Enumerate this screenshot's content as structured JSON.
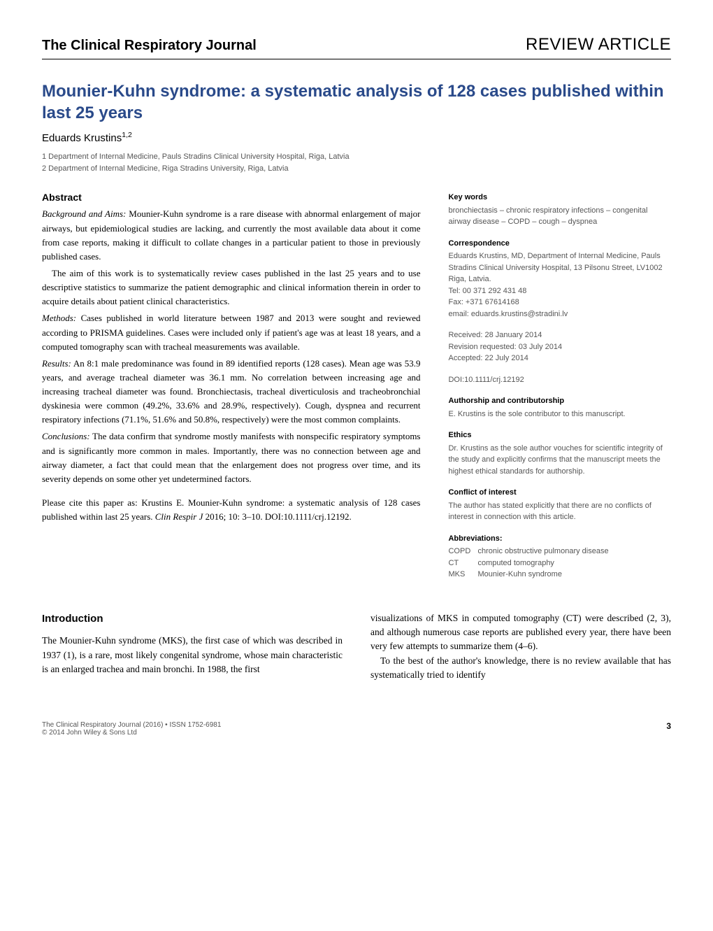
{
  "header": {
    "journal_name": "The Clinical Respiratory Journal",
    "article_type": "REVIEW ARTICLE"
  },
  "title": "Mounier-Kuhn syndrome: a systematic analysis of 128 cases published within last 25 years",
  "author_name": "Eduards Krustins",
  "author_sup": "1,2",
  "affiliations": {
    "a1": "1 Department of Internal Medicine, Pauls Stradins Clinical University Hospital, Riga, Latvia",
    "a2": "2 Department of Internal Medicine, Riga Stradins University, Riga, Latvia"
  },
  "abstract": {
    "heading": "Abstract",
    "background_label": "Background and Aims:",
    "background_text": "Mounier-Kuhn syndrome is a rare disease with abnormal enlargement of major airways, but epidemiological studies are lacking, and currently the most available data about it come from case reports, making it difficult to collate changes in a particular patient to those in previously published cases.",
    "aim_text": "The aim of this work is to systematically review cases published in the last 25 years and to use descriptive statistics to summarize the patient demographic and clinical information therein in order to acquire details about patient clinical characteristics.",
    "methods_label": "Methods:",
    "methods_text": "Cases published in world literature between 1987 and 2013 were sought and reviewed according to PRISMA guidelines. Cases were included only if patient's age was at least 18 years, and a computed tomography scan with tracheal measurements was available.",
    "results_label": "Results:",
    "results_text": "An 8:1 male predominance was found in 89 identified reports (128 cases). Mean age was 53.9 years, and average tracheal diameter was 36.1 mm. No correlation between increasing age and increasing tracheal diameter was found. Bronchiectasis, tracheal diverticulosis and tracheobronchial dyskinesia were common (49.2%, 33.6% and 28.9%, respectively). Cough, dyspnea and recurrent respiratory infections (71.1%, 51.6% and 50.8%, respectively) were the most common complaints.",
    "conclusions_label": "Conclusions:",
    "conclusions_text": "The data confirm that syndrome mostly manifests with nonspecific respiratory symptoms and is significantly more common in males. Importantly, there was no connection between age and airway diameter, a fact that could mean that the enlargement does not progress over time, and its severity depends on some other yet undetermined factors."
  },
  "citation": {
    "prefix": "Please cite this paper as: Krustins E. Mounier-Kuhn syndrome: a systematic analysis of 128 cases published within last 25 years. ",
    "journal_italic": "Clin Respir J",
    "suffix": " 2016; 10: 3–10. DOI:10.1111/crj.12192."
  },
  "sidebar": {
    "keywords_heading": "Key words",
    "keywords_text": "bronchiectasis – chronic respiratory infections – congenital airway disease – COPD – cough – dyspnea",
    "correspondence_heading": "Correspondence",
    "correspondence_text": "Eduards Krustins, MD, Department of Internal Medicine, Pauls Stradins Clinical University Hospital, 13 Pilsonu Street, LV1002 Riga, Latvia.",
    "tel": "Tel: 00 371 292 431 48",
    "fax": "Fax: +371 67614168",
    "email": "email: eduards.krustins@stradini.lv",
    "received": "Received: 28 January 2014",
    "revision": "Revision requested: 03 July 2014",
    "accepted": "Accepted: 22 July 2014",
    "doi": "DOI:10.1111/crj.12192",
    "authorship_heading": "Authorship and contributorship",
    "authorship_text": "E. Krustins is the sole contributor to this manuscript.",
    "ethics_heading": "Ethics",
    "ethics_text": "Dr. Krustins as the sole author vouches for scientific integrity of the study and explicitly confirms that the manuscript meets the highest ethical standards for authorship.",
    "coi_heading": "Conflict of interest",
    "coi_text": "The author has stated explicitly that there are no conflicts of interest in connection with this article.",
    "abbrev_heading": "Abbreviations:",
    "abbrev": {
      "copd_k": "COPD",
      "copd_v": "chronic obstructive pulmonary disease",
      "ct_k": "CT",
      "ct_v": "computed tomography",
      "mks_k": "MKS",
      "mks_v": "Mounier-Kuhn syndrome"
    }
  },
  "intro": {
    "heading": "Introduction",
    "left_p": "The Mounier-Kuhn syndrome (MKS), the first case of which was described in 1937 (1), is a rare, most likely congenital syndrome, whose main characteristic is an enlarged trachea and main bronchi. In 1988, the first",
    "right_p1": "visualizations of MKS in computed tomography (CT) were described (2, 3), and although numerous case reports are published every year, there have been very few attempts to summarize them (4–6).",
    "right_p2": "To the best of the author's knowledge, there is no review available that has systematically tried to identify"
  },
  "footer": {
    "left_line1": "The Clinical Respiratory Journal (2016) • ISSN 1752-6981",
    "left_line2": "© 2014 John Wiley & Sons Ltd",
    "page_number": "3"
  },
  "colors": {
    "title_color": "#2a4a8a",
    "text_color": "#000000",
    "muted_color": "#555555",
    "background": "#ffffff"
  },
  "typography": {
    "title_fontsize": 24,
    "body_fontsize": 13,
    "sidebar_fontsize": 11,
    "heading_fontsize": 14,
    "title_fontfamily": "Arial",
    "body_fontfamily": "Georgia"
  }
}
